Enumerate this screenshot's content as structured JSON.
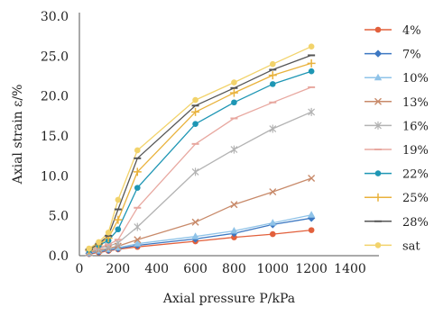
{
  "chart_data": {
    "type": "line",
    "xlabel": "Axial pressure P/kPa",
    "ylabel": "Axial strain ε/%",
    "xlim": [
      0,
      1400
    ],
    "ylim": [
      0,
      30
    ],
    "x_ticks": [
      "0",
      "200",
      "400",
      "600",
      "800",
      "1000",
      "1200",
      "1400"
    ],
    "y_ticks": [
      "0.0",
      "5.0",
      "10.0",
      "15.0",
      "20.0",
      "25.0",
      "30.0"
    ],
    "grid": false,
    "legend_position": "right",
    "x": [
      50,
      100,
      150,
      200,
      300,
      600,
      800,
      1000,
      1200
    ],
    "series": [
      {
        "name": "4%",
        "color": "#e2603c",
        "marker": "circle",
        "values": [
          0.2,
          0.4,
          0.6,
          0.8,
          1.1,
          1.8,
          2.3,
          2.7,
          3.2
        ]
      },
      {
        "name": "7%",
        "color": "#3d78c2",
        "marker": "diamond",
        "values": [
          0.3,
          0.5,
          0.7,
          0.9,
          1.3,
          2.1,
          2.8,
          3.9,
          4.7
        ]
      },
      {
        "name": "10%",
        "color": "#8fc3e8",
        "marker": "triangle",
        "values": [
          0.3,
          0.6,
          0.8,
          1.0,
          1.5,
          2.4,
          3.1,
          4.1,
          5.1
        ]
      },
      {
        "name": "13%",
        "color": "#c88a6a",
        "marker": "x",
        "values": [
          0.4,
          0.7,
          0.9,
          1.2,
          2.0,
          4.2,
          6.4,
          8.0,
          9.7
        ]
      },
      {
        "name": "16%",
        "color": "#b3b3b3",
        "marker": "star",
        "values": [
          0.5,
          0.9,
          1.2,
          1.6,
          3.6,
          10.5,
          13.3,
          15.9,
          18.0
        ]
      },
      {
        "name": "19%",
        "color": "#e8a8a0",
        "marker": "dash",
        "values": [
          0.6,
          1.0,
          1.4,
          2.0,
          6.0,
          14.0,
          17.2,
          19.2,
          21.1
        ]
      },
      {
        "name": "22%",
        "color": "#1e96b4",
        "marker": "circle",
        "values": [
          0.7,
          1.3,
          1.9,
          3.3,
          8.5,
          16.5,
          19.2,
          21.5,
          23.1
        ]
      },
      {
        "name": "25%",
        "color": "#e9b23c",
        "marker": "plus",
        "values": [
          0.7,
          1.4,
          2.2,
          4.5,
          10.5,
          18.0,
          20.4,
          22.6,
          24.1
        ]
      },
      {
        "name": "28%",
        "color": "#555555",
        "marker": "dash",
        "values": [
          0.8,
          1.5,
          2.5,
          5.8,
          12.2,
          18.8,
          21.0,
          23.3,
          25.1
        ]
      },
      {
        "name": "sat",
        "color": "#f2d36b",
        "marker": "circle",
        "values": [
          0.9,
          1.7,
          2.9,
          7.0,
          13.2,
          19.5,
          21.7,
          24.0,
          26.2
        ]
      }
    ]
  }
}
